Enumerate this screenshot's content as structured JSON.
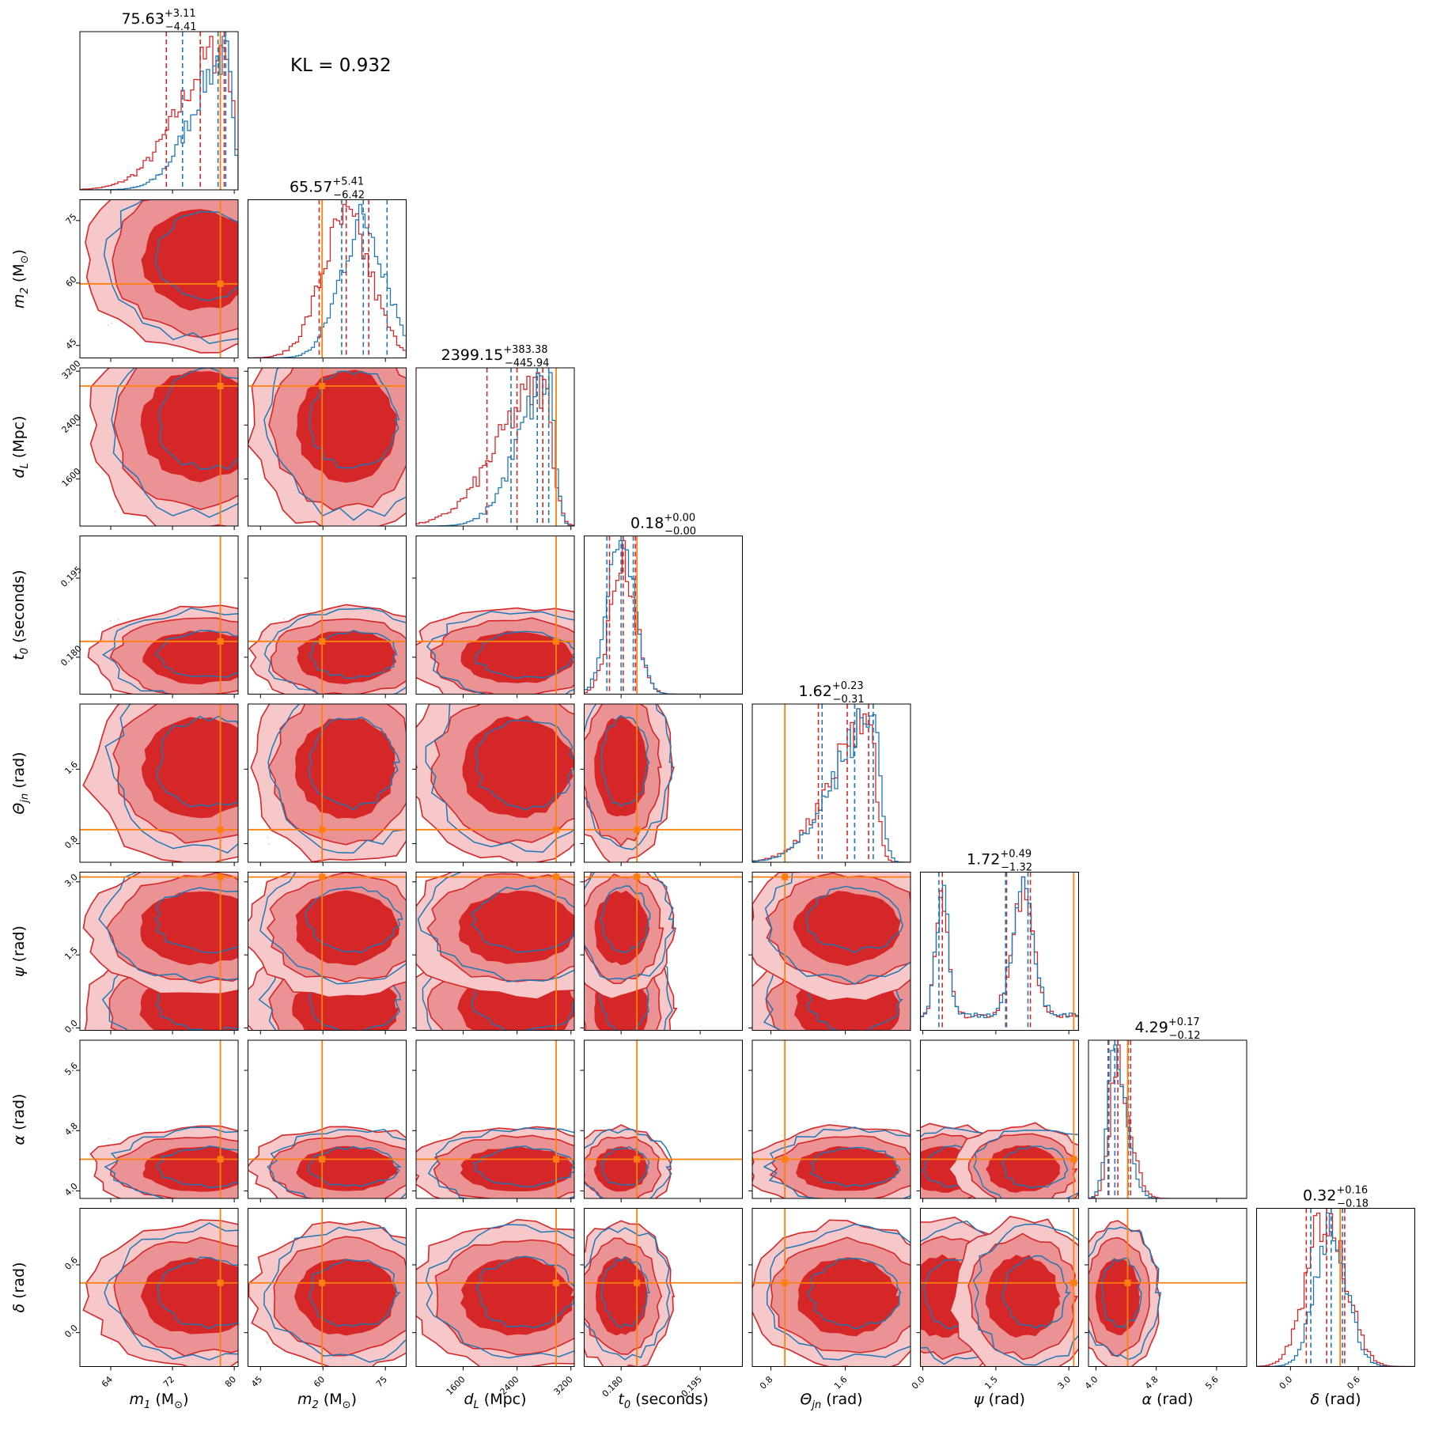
{
  "kl_text": "KL = 0.932",
  "colors": {
    "red": "#d62728",
    "blue": "#1f77b4",
    "truth": "#ff7f0e",
    "fill_dark": "#d62728",
    "fill_light": "#eb9294",
    "fill_faint": "#f6c8c9"
  },
  "chart_data": {
    "type": "corner",
    "parameters": [
      {
        "id": "m1",
        "label_main": "m",
        "label_sub": "1",
        "label_unit": " (M",
        "label_unit_end": ")",
        "sym": "sun",
        "range": [
          60,
          80.5
        ],
        "ticks": [
          "64",
          "72",
          "80"
        ],
        "tick_values": [
          64,
          72,
          80
        ],
        "truth": 78.2,
        "median": 75.63,
        "plus": "+3.11",
        "minus": "−4.41",
        "title_value": "75.63",
        "red_q": [
          71.2,
          75.6,
          78.7
        ],
        "blue_q": [
          73.3,
          77.9,
          78.9
        ],
        "hist_shape": "rising"
      },
      {
        "id": "m2",
        "label_main": "m",
        "label_sub": "2",
        "label_unit": " (M",
        "label_unit_end": ")",
        "sym": "sun",
        "range": [
          42,
          80
        ],
        "ticks": [
          "45",
          "60",
          "75"
        ],
        "tick_values": [
          45,
          60,
          75
        ],
        "truth": 59.8,
        "median": 65.57,
        "plus": "+5.41",
        "minus": "−6.42",
        "title_value": "65.57",
        "red_q": [
          59.1,
          65.6,
          71.0
        ],
        "blue_q": [
          64.5,
          69.7,
          75.4
        ],
        "hist_shape": "peak"
      },
      {
        "id": "dL",
        "label_main": "d",
        "label_sub": "L",
        "label_unit": " (Mpc)",
        "label_unit_end": "",
        "sym": "",
        "range": [
          900,
          3250
        ],
        "ticks": [
          "1600",
          "2400",
          "3200"
        ],
        "tick_values": [
          1600,
          2400,
          3200
        ],
        "truth": 2980,
        "median": 2399.15,
        "plus": "+383.38",
        "minus": "−445.94",
        "title_value": "2399.15",
        "red_q": [
          1953,
          2399,
          2782
        ],
        "blue_q": [
          2310,
          2700,
          2870
        ],
        "hist_shape": "rising_late"
      },
      {
        "id": "t0",
        "label_main": "t",
        "label_sub": "0",
        "label_unit": " (seconds)",
        "label_unit_end": "",
        "sym": "",
        "range": [
          0.173,
          0.203
        ],
        "ticks": [
          "0.180",
          "0.195"
        ],
        "tick_values": [
          0.18,
          0.195
        ],
        "truth": 0.183,
        "median": 0.18,
        "plus": "+0.00",
        "minus": "−0.00",
        "title_value": "0.18",
        "red_q": [
          0.1778,
          0.1804,
          0.1827
        ],
        "blue_q": [
          0.1773,
          0.18,
          0.1823
        ],
        "hist_shape": "narrow"
      },
      {
        "id": "theta",
        "label_main": "Θ",
        "label_sub": "jn",
        "label_unit": " (rad)",
        "label_unit_end": "",
        "sym": "",
        "range": [
          0.6,
          2.3
        ],
        "ticks": [
          "0.8",
          "1.6"
        ],
        "tick_values": [
          0.8,
          1.6
        ],
        "truth": 0.95,
        "median": 1.62,
        "plus": "+0.23",
        "minus": "−0.31",
        "title_value": "1.62",
        "red_q": [
          1.31,
          1.62,
          1.85
        ],
        "blue_q": [
          1.35,
          1.7,
          1.9
        ],
        "hist_shape": "rising"
      },
      {
        "id": "psi",
        "label_main": "ψ",
        "label_sub": "",
        "label_unit": " (rad)",
        "label_unit_end": "",
        "sym": "",
        "range": [
          -0.05,
          3.2
        ],
        "ticks": [
          "0.0",
          "1.5",
          "3.0"
        ],
        "tick_values": [
          0.0,
          1.5,
          3.0
        ],
        "truth": 3.1,
        "median": 1.72,
        "plus": "+0.49",
        "minus": "−1.32",
        "title_value": "1.72",
        "red_q": [
          0.4,
          1.72,
          2.21
        ],
        "blue_q": [
          0.33,
          1.7,
          2.16
        ],
        "hist_shape": "bimodal"
      },
      {
        "id": "alpha",
        "label_main": "α",
        "label_sub": "",
        "label_unit": " (rad)",
        "label_unit_end": "",
        "sym": "",
        "range": [
          3.9,
          6.0
        ],
        "ticks": [
          "4.0",
          "4.8",
          "5.6"
        ],
        "tick_values": [
          4.0,
          4.8,
          5.6
        ],
        "truth": 4.42,
        "median": 4.29,
        "plus": "+0.17",
        "minus": "−0.12",
        "title_value": "4.29",
        "red_q": [
          4.17,
          4.29,
          4.46
        ],
        "blue_q": [
          4.16,
          4.25,
          4.43
        ],
        "hist_shape": "narrow_skew"
      },
      {
        "id": "delta",
        "label_main": "δ",
        "label_sub": "",
        "label_unit": " (rad)",
        "label_unit_end": "",
        "sym": "",
        "range": [
          -0.3,
          1.1
        ],
        "ticks": [
          "0.0",
          "0.6"
        ],
        "tick_values": [
          0.0,
          0.6
        ],
        "truth": 0.44,
        "median": 0.32,
        "plus": "+0.16",
        "minus": "−0.18",
        "title_value": "0.32",
        "red_q": [
          0.14,
          0.32,
          0.48
        ],
        "blue_q": [
          0.18,
          0.36,
          0.46
        ],
        "hist_shape": "peak"
      }
    ],
    "series": [
      {
        "name": "",
        "color": "#d62728",
        "style": "filled contours"
      },
      {
        "name": "",
        "color": "#1f77b4",
        "style": "contour lines"
      }
    ]
  }
}
